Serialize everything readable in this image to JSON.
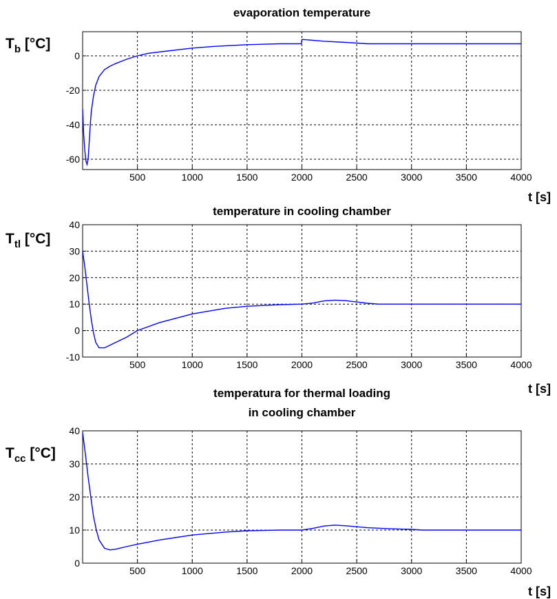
{
  "chart_data": [
    {
      "type": "line",
      "title": [
        "evaporation temperature"
      ],
      "ylabel": {
        "main": "T",
        "sub": "b",
        "unit": " [°C]"
      },
      "xlabel": "t [s]",
      "xlim": [
        0,
        4000
      ],
      "ylim": [
        -66,
        14
      ],
      "xticks": [
        500,
        1000,
        1500,
        2000,
        2500,
        3000,
        3500,
        4000
      ],
      "yticks": [
        -60,
        -40,
        -20,
        0
      ],
      "grid": true,
      "line_color": "#0000ff",
      "series": [
        {
          "x": [
            0,
            10,
            20,
            30,
            40,
            50,
            60,
            70,
            80,
            100,
            120,
            150,
            200,
            250,
            300,
            400,
            500,
            600,
            800,
            1000,
            1200,
            1500,
            1800,
            1995,
            2000,
            2010,
            2050,
            2100,
            2200,
            2400,
            2600,
            2700,
            3000,
            3500,
            4000
          ],
          "y": [
            -31,
            -46,
            -55,
            -61,
            -63,
            -60,
            -50,
            -40,
            -32,
            -23,
            -17,
            -12,
            -8,
            -6,
            -4.5,
            -2,
            0,
            1.5,
            3,
            4.5,
            5.5,
            6.5,
            7,
            7,
            9.5,
            9.5,
            9.3,
            9,
            8.5,
            7.8,
            7,
            7,
            7,
            7,
            7
          ]
        }
      ]
    },
    {
      "type": "line",
      "title": [
        "temperature in cooling chamber"
      ],
      "ylabel": {
        "main": "T",
        "sub": "tl",
        "unit": " [°C]"
      },
      "xlabel": "t [s]",
      "xlim": [
        0,
        4000
      ],
      "ylim": [
        -10,
        40
      ],
      "xticks": [
        500,
        1000,
        1500,
        2000,
        2500,
        3000,
        3500,
        4000
      ],
      "yticks": [
        -10,
        0,
        10,
        20,
        30,
        40
      ],
      "grid": true,
      "line_color": "#0000ff",
      "series": [
        {
          "x": [
            0,
            20,
            40,
            60,
            80,
            100,
            120,
            150,
            200,
            250,
            300,
            400,
            500,
            700,
            1000,
            1300,
            1500,
            1800,
            2000,
            2100,
            2200,
            2300,
            2400,
            2500,
            2600,
            2700,
            3000,
            3500,
            4000
          ],
          "y": [
            30,
            24,
            17,
            10,
            4,
            -1,
            -4.5,
            -6.5,
            -6.5,
            -5.5,
            -4.5,
            -2.5,
            0,
            3,
            6.3,
            8.4,
            9.2,
            9.8,
            10,
            10.4,
            11.2,
            11.5,
            11.3,
            10.8,
            10.3,
            10,
            10,
            10,
            10
          ]
        }
      ]
    },
    {
      "type": "line",
      "title": [
        "temperatura for thermal loading",
        "in cooling chamber"
      ],
      "ylabel": {
        "main": "T",
        "sub": "cc",
        "unit": " [°C]"
      },
      "xlabel": "t [s]",
      "xlim": [
        0,
        4000
      ],
      "ylim": [
        0,
        40
      ],
      "xticks": [
        500,
        1000,
        1500,
        2000,
        2500,
        3000,
        3500,
        4000
      ],
      "yticks": [
        0,
        10,
        20,
        30,
        40
      ],
      "grid": true,
      "line_color": "#0000ff",
      "series": [
        {
          "x": [
            0,
            25,
            50,
            75,
            100,
            125,
            150,
            200,
            250,
            300,
            400,
            500,
            700,
            1000,
            1300,
            1500,
            1800,
            2000,
            2100,
            2200,
            2300,
            2400,
            2500,
            2600,
            2800,
            3000,
            3100,
            3500,
            4000
          ],
          "y": [
            39.5,
            33,
            26,
            20,
            14,
            10,
            7,
            4.5,
            4,
            4.2,
            5,
            5.7,
            7,
            8.5,
            9.4,
            9.8,
            10,
            10,
            10.5,
            11.2,
            11.5,
            11.3,
            11,
            10.7,
            10.4,
            10.2,
            10,
            10,
            10
          ]
        }
      ]
    }
  ]
}
